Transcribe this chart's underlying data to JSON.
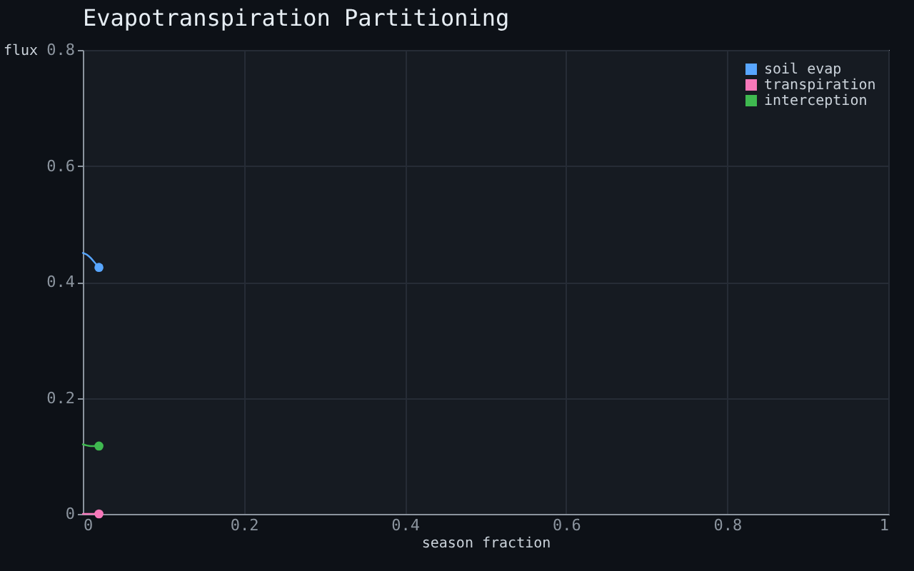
{
  "chart_data": {
    "type": "line",
    "title": "Evapotranspiration Partitioning",
    "xlabel": "season fraction",
    "ylabel": "flux",
    "x": [
      0,
      0.005,
      0.01,
      0.015,
      0.02
    ],
    "series": [
      {
        "name": "soil evap",
        "color": "#58a6ff",
        "values": [
          0.45,
          0.447,
          0.441,
          0.433,
          0.425
        ]
      },
      {
        "name": "transpiration",
        "color": "#f778ba",
        "values": [
          0,
          0,
          0,
          0,
          0
        ]
      },
      {
        "name": "interception",
        "color": "#3fb950",
        "values": [
          0.12,
          0.118,
          0.117,
          0.117,
          0.117
        ]
      },
      {
        "type": "scatter",
        "values": [
          null,
          null,
          null,
          null,
          0.425
        ],
        "color": "#58a6ff",
        "marker": "circle"
      },
      {
        "type": "scatter",
        "values": [
          null,
          null,
          null,
          null,
          0
        ],
        "color": "#f778ba",
        "marker": "circle"
      },
      {
        "type": "scatter",
        "values": [
          null,
          null,
          null,
          null,
          0.117
        ],
        "color": "#3fb950",
        "marker": "circle"
      }
    ],
    "xlim": [
      0,
      1
    ],
    "ylim": [
      0,
      0.8
    ],
    "xticks": [
      0,
      0.2,
      0.4,
      0.6,
      0.8,
      1
    ],
    "yticks": [
      0,
      0.2,
      0.4,
      0.6,
      0.8
    ],
    "grid": true,
    "legend": "top right"
  }
}
